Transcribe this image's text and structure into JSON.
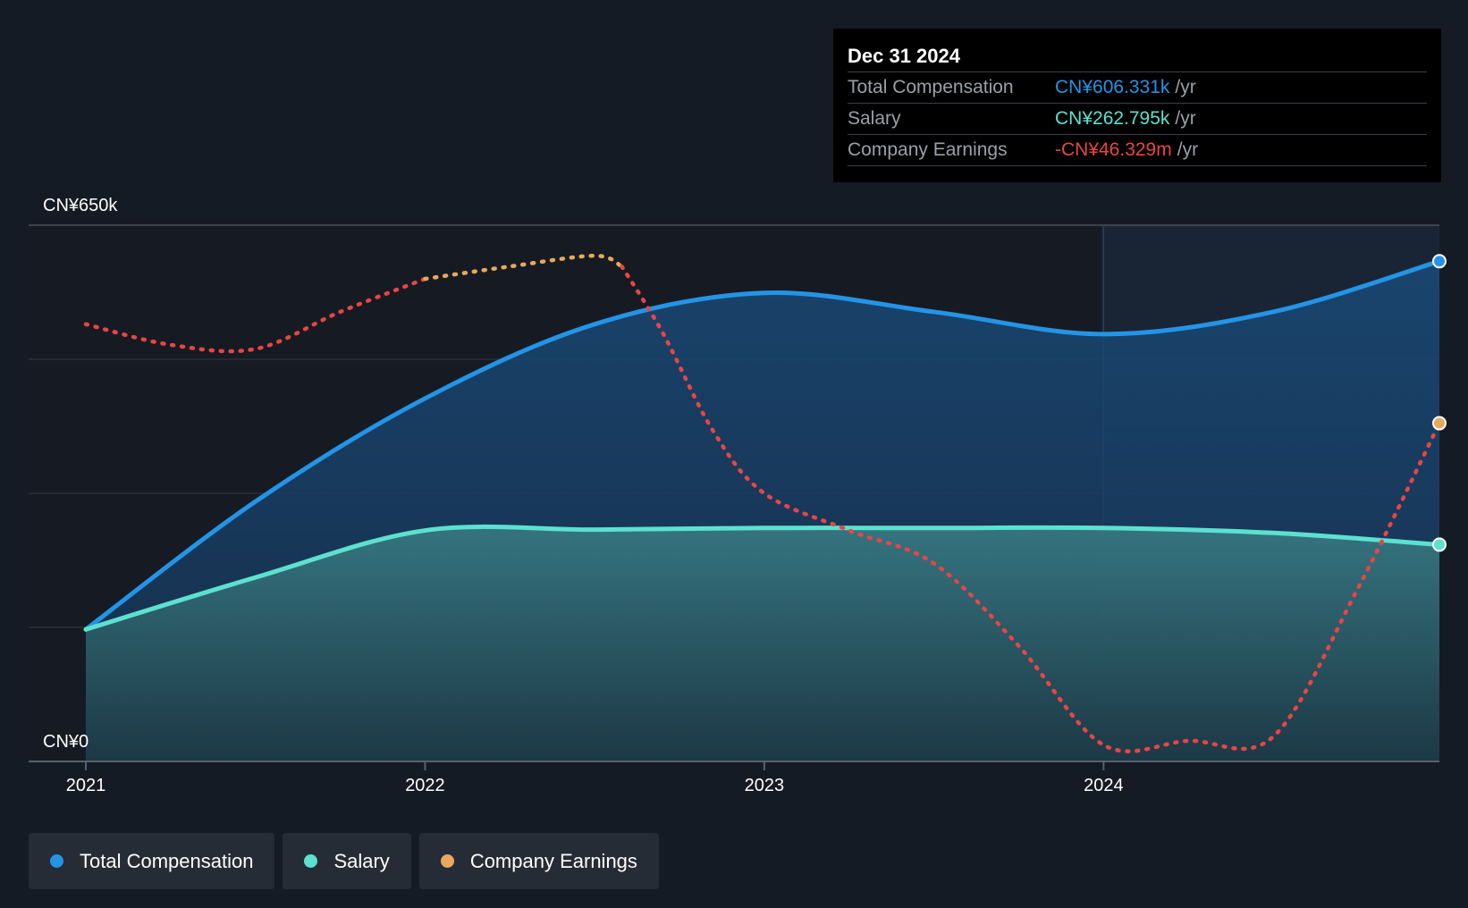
{
  "chart_data": {
    "type": "area",
    "y_axis": {
      "max_label": "CN¥650k",
      "min_label": "CN¥0",
      "ylim": [
        0,
        650000
      ]
    },
    "x_ticks": [
      "2021",
      "2022",
      "2023",
      "2024"
    ],
    "x_range": [
      2021.0,
      2024.99
    ],
    "series": [
      {
        "name": "Total Compensation",
        "color": "#2394e6",
        "style": "solid-area",
        "points": [
          [
            2021.0,
            160000
          ],
          [
            2021.5,
            315000
          ],
          [
            2022.0,
            440000
          ],
          [
            2022.5,
            530000
          ],
          [
            2023.0,
            568000
          ],
          [
            2023.5,
            545000
          ],
          [
            2024.0,
            518000
          ],
          [
            2024.5,
            545000
          ],
          [
            2024.99,
            606331
          ]
        ]
      },
      {
        "name": "Salary",
        "color": "#5ce1cf",
        "style": "solid-area",
        "points": [
          [
            2021.0,
            160000
          ],
          [
            2021.5,
            223000
          ],
          [
            2022.0,
            280000
          ],
          [
            2022.5,
            281000
          ],
          [
            2023.0,
            283000
          ],
          [
            2023.5,
            283000
          ],
          [
            2024.0,
            283000
          ],
          [
            2024.5,
            277000
          ],
          [
            2024.99,
            262795
          ]
        ]
      },
      {
        "name": "Company Earnings",
        "color": "#e8a95c",
        "negative_color": "#e84545",
        "style": "dotted",
        "segments": [
          {
            "sign": "negative",
            "points": [
              [
                2021.0,
                530000
              ],
              [
                2021.25,
                505000
              ],
              [
                2021.5,
                500000
              ],
              [
                2021.75,
                545000
              ],
              [
                2022.0,
                585000
              ]
            ]
          },
          {
            "sign": "positive",
            "points": [
              [
                2022.0,
                585000
              ],
              [
                2022.25,
                600000
              ],
              [
                2022.5,
                613000
              ],
              [
                2022.58,
                600000
              ]
            ]
          },
          {
            "sign": "negative",
            "points": [
              [
                2022.58,
                600000
              ],
              [
                2022.7,
                520000
              ],
              [
                2022.85,
                400000
              ],
              [
                2023.0,
                325000
              ],
              [
                2023.25,
                280000
              ],
              [
                2023.5,
                240000
              ],
              [
                2023.75,
                140000
              ],
              [
                2024.0,
                20000
              ],
              [
                2024.25,
                25000
              ],
              [
                2024.5,
                30000
              ],
              [
                2024.75,
                210000
              ],
              [
                2024.99,
                410000
              ]
            ]
          }
        ]
      }
    ],
    "hover_x": 2024.0
  },
  "tooltip": {
    "date": "Dec 31 2024",
    "rows": [
      {
        "label": "Total Compensation",
        "value": "CN¥606.331k",
        "unit": "/yr",
        "color": "#2394e6"
      },
      {
        "label": "Salary",
        "value": "CN¥262.795k",
        "unit": "/yr",
        "color": "#5ce1cf"
      },
      {
        "label": "Company Earnings",
        "value": "-CN¥46.329m",
        "unit": "/yr",
        "color": "#e84545"
      }
    ]
  },
  "legend": [
    {
      "label": "Total Compensation",
      "color": "#2394e6"
    },
    {
      "label": "Salary",
      "color": "#5ce1cf"
    },
    {
      "label": "Company Earnings",
      "color": "#e8a95c"
    }
  ]
}
